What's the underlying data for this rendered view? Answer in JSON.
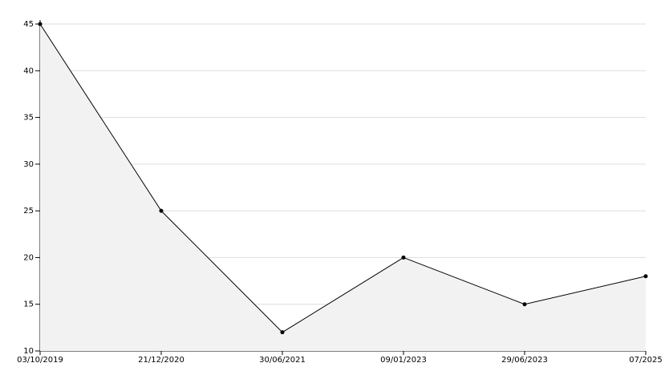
{
  "chart_data": {
    "type": "area",
    "categories": [
      "03/10/2019",
      "21/12/2020",
      "30/06/2021",
      "09/01/2023",
      "29/06/2023",
      "07/2025"
    ],
    "values": [
      45,
      25,
      12,
      20,
      15,
      18
    ],
    "color": "#000000",
    "fill": "#f2f2f2",
    "ylim": [
      10,
      45
    ],
    "yticks": [
      10,
      15,
      20,
      25,
      30,
      35,
      40,
      45
    ],
    "grid": true
  }
}
